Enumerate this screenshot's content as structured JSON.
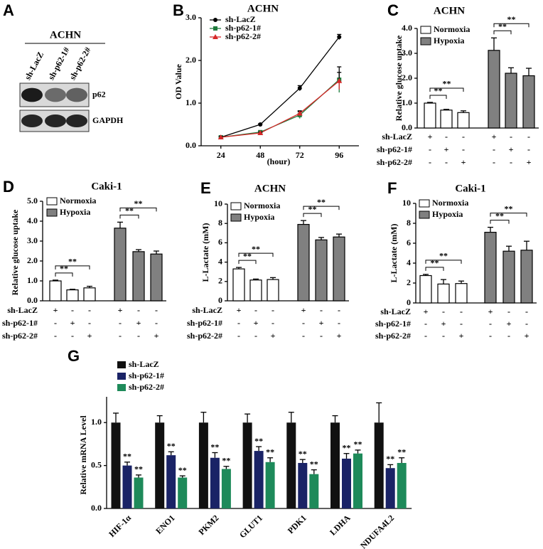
{
  "chart_data": [
    {
      "type": "blot",
      "panel": "A",
      "title": "ACHN",
      "lanes": [
        "sh-LacZ",
        "sh-p62-1#",
        "sh-p62-2#"
      ],
      "rows": [
        "p62",
        "GAPDH"
      ]
    },
    {
      "type": "line",
      "panel": "B",
      "title": "ACHN",
      "x_label": "(hour)",
      "y_label": "OD Value",
      "x": [
        24,
        48,
        72,
        96
      ],
      "xlim": [
        12,
        108
      ],
      "xticks": [
        24,
        48,
        72,
        96
      ],
      "ylim": [
        0,
        3
      ],
      "yticks": [
        {
          "value": 0,
          "label": "0.0"
        },
        {
          "value": 1,
          "label": "1.0"
        },
        {
          "value": 2,
          "label": "2.0"
        },
        {
          "value": 3,
          "label": "3.0"
        }
      ],
      "series": [
        {
          "name": "sh-LacZ",
          "color": "#000000",
          "marker": "circle",
          "values": [
            0.2,
            0.5,
            1.35,
            2.55
          ],
          "errors": [
            0.02,
            0.02,
            0.06,
            0.06
          ]
        },
        {
          "name": "sh-p62-1#",
          "color": "#1e7a3c",
          "marker": "square",
          "values": [
            0.2,
            0.32,
            0.72,
            1.55
          ],
          "errors": [
            0.02,
            0.03,
            0.08,
            0.3
          ]
        },
        {
          "name": "sh-p62-2#",
          "color": "#d62728",
          "marker": "triangle",
          "values": [
            0.2,
            0.3,
            0.76,
            1.52
          ],
          "errors": [
            0.02,
            0.02,
            0.06,
            0.2
          ]
        }
      ]
    },
    {
      "type": "bar",
      "panel": "C",
      "title": "ACHN",
      "y_label": "Relative glucose uptake",
      "ylim": [
        0,
        4
      ],
      "yticks": [
        {
          "value": 0,
          "label": "0.0"
        },
        {
          "value": 1,
          "label": "1.0"
        },
        {
          "value": 2,
          "label": "2.0"
        },
        {
          "value": 3,
          "label": "3.0"
        },
        {
          "value": 4,
          "label": "4.0"
        }
      ],
      "series": [
        {
          "name": "Normoxia",
          "color": "#ffffff",
          "values": [
            1.0,
            0.72,
            0.62
          ],
          "errors": [
            0.03,
            0.03,
            0.07
          ],
          "significance": [
            "**",
            "**"
          ]
        },
        {
          "name": "Hypoxia",
          "color": "#808080",
          "values": [
            3.12,
            2.2,
            2.1
          ],
          "errors": [
            0.5,
            0.22,
            0.3
          ],
          "significance": [
            "**",
            "**"
          ]
        }
      ],
      "conditions": [
        {
          "label": "sh-LacZ",
          "signs": [
            "+",
            "-",
            "-",
            "+",
            "-",
            "-"
          ]
        },
        {
          "label": "sh-p62-1#",
          "signs": [
            "-",
            "+",
            "-",
            "-",
            "+",
            "-"
          ]
        },
        {
          "label": "sh-p62-2#",
          "signs": [
            "-",
            "-",
            "+",
            "-",
            "-",
            "+"
          ]
        }
      ]
    },
    {
      "type": "bar",
      "panel": "D",
      "title": "Caki-1",
      "y_label": "Relative glucose uptake",
      "ylim": [
        0,
        5
      ],
      "yticks": [
        {
          "value": 0,
          "label": "0.0"
        },
        {
          "value": 1,
          "label": "1.0"
        },
        {
          "value": 2,
          "label": "2.0"
        },
        {
          "value": 3,
          "label": "3.0"
        },
        {
          "value": 4,
          "label": "4.0"
        },
        {
          "value": 5,
          "label": "5.0"
        }
      ],
      "series": [
        {
          "name": "Normoxia",
          "color": "#ffffff",
          "values": [
            1.0,
            0.55,
            0.65
          ],
          "errors": [
            0.04,
            0.03,
            0.08
          ],
          "significance": [
            "**",
            "**"
          ]
        },
        {
          "name": "Hypoxia",
          "color": "#808080",
          "values": [
            3.65,
            2.47,
            2.35
          ],
          "errors": [
            0.3,
            0.1,
            0.15
          ],
          "significance": [
            "**",
            "**"
          ]
        }
      ],
      "conditions": [
        {
          "label": "sh-LacZ",
          "signs": [
            "+",
            "-",
            "-",
            "+",
            "-",
            "-"
          ]
        },
        {
          "label": "sh-p62-1#",
          "signs": [
            "-",
            "+",
            "-",
            "-",
            "+",
            "-"
          ]
        },
        {
          "label": "sh-p62-2#",
          "signs": [
            "-",
            "-",
            "+",
            "-",
            "-",
            "+"
          ]
        }
      ]
    },
    {
      "type": "bar",
      "panel": "E",
      "title": "ACHN",
      "y_label": "L-Lactate (mM)",
      "ylim": [
        0,
        10
      ],
      "yticks": [
        0,
        2,
        4,
        6,
        8,
        10
      ],
      "series": [
        {
          "name": "Normoxia",
          "color": "#ffffff",
          "values": [
            3.3,
            2.15,
            2.2
          ],
          "errors": [
            0.15,
            0.1,
            0.2
          ],
          "significance": [
            "**",
            "**"
          ]
        },
        {
          "name": "Hypoxia",
          "color": "#808080",
          "values": [
            7.9,
            6.3,
            6.6
          ],
          "errors": [
            0.4,
            0.25,
            0.3
          ],
          "significance": [
            "**",
            "**"
          ]
        }
      ],
      "conditions": [
        {
          "label": "sh-LacZ",
          "signs": [
            "+",
            "-",
            "-",
            "+",
            "-",
            "-"
          ]
        },
        {
          "label": "sh-p62-1#",
          "signs": [
            "-",
            "+",
            "-",
            "-",
            "+",
            "-"
          ]
        },
        {
          "label": "sh-p62-2#",
          "signs": [
            "-",
            "-",
            "+",
            "-",
            "-",
            "+"
          ]
        }
      ]
    },
    {
      "type": "bar",
      "panel": "F",
      "title": "Caki-1",
      "y_label": "L-Lactate (mM)",
      "ylim": [
        0,
        10
      ],
      "yticks": [
        0,
        2,
        4,
        6,
        8,
        10
      ],
      "series": [
        {
          "name": "Normoxia",
          "color": "#ffffff",
          "values": [
            2.75,
            1.9,
            1.95
          ],
          "errors": [
            0.12,
            0.45,
            0.25
          ],
          "significance": [
            "**",
            "**"
          ]
        },
        {
          "name": "Hypoxia",
          "color": "#808080",
          "values": [
            7.1,
            5.2,
            5.3
          ],
          "errors": [
            0.5,
            0.5,
            0.9
          ],
          "significance": [
            "**",
            "**"
          ]
        }
      ],
      "conditions": [
        {
          "label": "sh-LacZ",
          "signs": [
            "+",
            "-",
            "-",
            "+",
            "-",
            "-"
          ]
        },
        {
          "label": "sh-p62-1#",
          "signs": [
            "-",
            "+",
            "-",
            "-",
            "+",
            "-"
          ]
        },
        {
          "label": "sh-p62-2#",
          "signs": [
            "-",
            "-",
            "+",
            "-",
            "-",
            "+"
          ]
        }
      ]
    },
    {
      "type": "bar",
      "panel": "G",
      "y_label": "Relative mRNA Level",
      "categories": [
        "HIF-1α",
        "ENO1",
        "PKM2",
        "GLUT1",
        "PDK1",
        "LDHA",
        "NDUFA4L2"
      ],
      "ylim": [
        0,
        1.3
      ],
      "yticks": [
        {
          "value": 0,
          "label": "0.0"
        },
        {
          "value": 0.5,
          "label": "0.5"
        },
        {
          "value": 1,
          "label": "1.0"
        }
      ],
      "series": [
        {
          "name": "sh-LacZ",
          "color": "#111111",
          "values": [
            1.0,
            1.0,
            1.0,
            1.0,
            1.0,
            1.0,
            1.0
          ],
          "errors": [
            0.11,
            0.08,
            0.12,
            0.1,
            0.12,
            0.08,
            0.23
          ]
        },
        {
          "name": "sh-p62-1#",
          "color": "#1a2366",
          "values": [
            0.5,
            0.62,
            0.59,
            0.67,
            0.53,
            0.58,
            0.47
          ],
          "errors": [
            0.04,
            0.04,
            0.06,
            0.05,
            0.04,
            0.06,
            0.04
          ],
          "significance": [
            "**",
            "**",
            "**",
            "**",
            "**",
            "**",
            "**"
          ]
        },
        {
          "name": "sh-p62-2#",
          "color": "#1e8a5a",
          "values": [
            0.36,
            0.36,
            0.46,
            0.54,
            0.4,
            0.64,
            0.53
          ],
          "errors": [
            0.03,
            0.02,
            0.03,
            0.05,
            0.05,
            0.04,
            0.06
          ],
          "significance": [
            "**",
            "**",
            "**",
            "**",
            "**",
            "**",
            "**"
          ]
        }
      ]
    }
  ]
}
